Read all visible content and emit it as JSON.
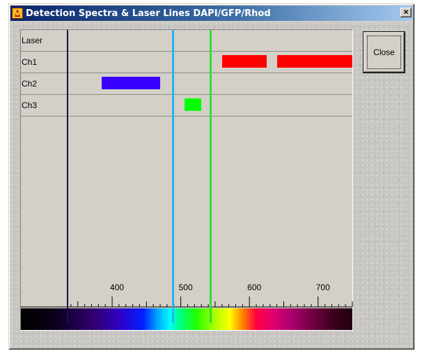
{
  "window": {
    "title": "Detection Spectra & Laser Lines DAPI/GFP/Rhod",
    "close_glyph": "×"
  },
  "buttons": {
    "close_label": "Close"
  },
  "rows": [
    "Laser",
    "Ch1",
    "Ch2",
    "Ch3"
  ],
  "ticks": [
    "400",
    "500",
    "600",
    "700"
  ],
  "colors": {
    "axis_line": "#1a1040",
    "laser_line_blue": "#20b8f0",
    "laser_line_green": "#30e030",
    "ch1_band": "#ff0000",
    "ch2_band": "#3a00ff",
    "ch3_band": "#00ff00"
  },
  "chart_data": {
    "type": "bar",
    "x_unit": "nm",
    "xlim": [
      335,
      750
    ],
    "laser_lines_nm": [
      488,
      543
    ],
    "bands": [
      {
        "channel": "Ch1",
        "start_nm": 560,
        "end_nm": 625,
        "color": "#ff0000"
      },
      {
        "channel": "Ch1",
        "start_nm": 640,
        "end_nm": 750,
        "color": "#ff0000"
      },
      {
        "channel": "Ch2",
        "start_nm": 385,
        "end_nm": 470,
        "color": "#3a00ff"
      },
      {
        "channel": "Ch3",
        "start_nm": 505,
        "end_nm": 530,
        "color": "#00ff00"
      }
    ],
    "tick_values": [
      400,
      500,
      600,
      700
    ]
  }
}
